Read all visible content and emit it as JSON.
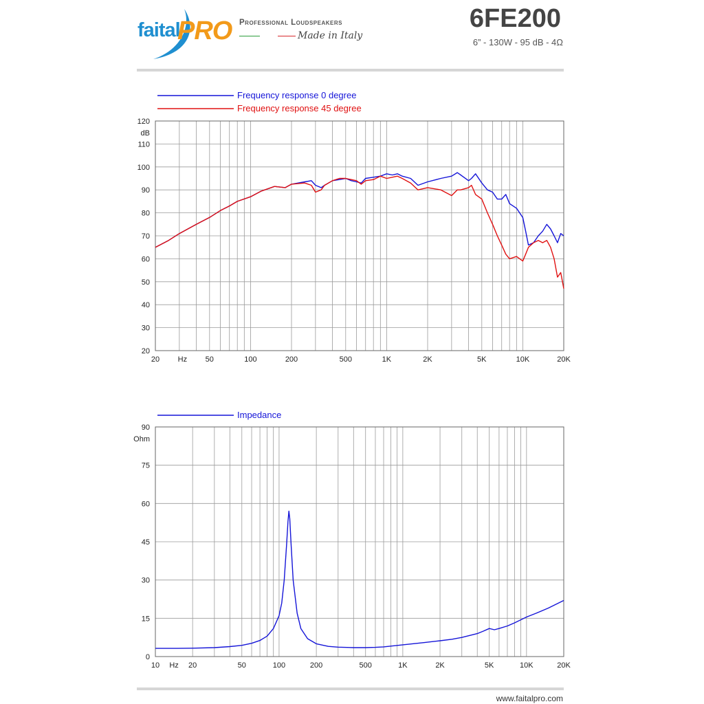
{
  "header": {
    "brand_left": "faital",
    "brand_right": "PRO",
    "tagline": "Professional Loudspeakers",
    "made_in": "Made in Italy",
    "model": "6FE200",
    "specs": "6” - 130W - 95 dB - 4Ω"
  },
  "footer": {
    "url": "www.faitalpro.com"
  },
  "colors": {
    "blue": "#1414d8",
    "red": "#e01010",
    "grid": "#9a9a9a"
  },
  "chart_data": [
    {
      "type": "line",
      "xscale": "log",
      "xlim": [
        20,
        20000
      ],
      "ylim": [
        20,
        120
      ],
      "ylabel": "dB",
      "xlabel": "Hz",
      "x_ticks": [
        20,
        50,
        100,
        200,
        500,
        1000,
        2000,
        5000,
        10000,
        20000
      ],
      "x_tick_labels": [
        "20",
        "50",
        "100",
        "200",
        "500",
        "1K",
        "2K",
        "5K",
        "10K",
        "20K"
      ],
      "y_ticks": [
        20,
        30,
        40,
        50,
        60,
        70,
        80,
        90,
        100,
        110,
        120
      ],
      "grid": true,
      "legend": "top-left",
      "series": [
        {
          "name": "Frequency response 0 degree",
          "color": "#1414d8",
          "x": [
            20,
            25,
            30,
            40,
            50,
            60,
            70,
            80,
            100,
            120,
            150,
            180,
            200,
            250,
            280,
            300,
            330,
            350,
            400,
            450,
            500,
            550,
            600,
            650,
            700,
            800,
            900,
            1000,
            1100,
            1200,
            1300,
            1500,
            1700,
            2000,
            2500,
            3000,
            3300,
            3500,
            4000,
            4200,
            4500,
            5000,
            5500,
            6000,
            6500,
            7000,
            7500,
            8000,
            9000,
            10000,
            10500,
            11000,
            12000,
            13000,
            14000,
            15000,
            16000,
            17000,
            18000,
            19000,
            20000
          ],
          "values": [
            65,
            68,
            71,
            75,
            78,
            81,
            83,
            85,
            87,
            89.5,
            91.5,
            91,
            92.5,
            93.5,
            94,
            92,
            91,
            92,
            94,
            94.5,
            95,
            94,
            93.5,
            93,
            95,
            95.5,
            96,
            97,
            96.5,
            97,
            96,
            95,
            92,
            93.5,
            95,
            96,
            97.5,
            96.5,
            94,
            95,
            97,
            93,
            90,
            89,
            86,
            86,
            88,
            84,
            82,
            78,
            72,
            66,
            67,
            70,
            72,
            75,
            73,
            70,
            67,
            71,
            70
          ]
        },
        {
          "name": "Frequency response 45 degree",
          "color": "#e01010",
          "x": [
            20,
            25,
            30,
            40,
            50,
            60,
            70,
            80,
            100,
            120,
            150,
            180,
            200,
            250,
            280,
            300,
            330,
            350,
            400,
            450,
            500,
            550,
            600,
            650,
            700,
            800,
            900,
            1000,
            1100,
            1200,
            1300,
            1500,
            1700,
            2000,
            2500,
            3000,
            3300,
            3500,
            4000,
            4200,
            4500,
            5000,
            5500,
            6000,
            6500,
            7000,
            7500,
            8000,
            9000,
            10000,
            10500,
            11000,
            12000,
            13000,
            14000,
            15000,
            16000,
            17000,
            18000,
            19000,
            20000
          ],
          "values": [
            65,
            68,
            71,
            75,
            78,
            81,
            83,
            85,
            87,
            89.5,
            91.5,
            91,
            92.5,
            93,
            92,
            89,
            90,
            92,
            94,
            95,
            95,
            94.5,
            94,
            92.5,
            94,
            94.5,
            96,
            95,
            95.5,
            96,
            95,
            93,
            90,
            91,
            90,
            87.5,
            90,
            90,
            91,
            92,
            88,
            86,
            80,
            75,
            70,
            66,
            62,
            60,
            61,
            59,
            62,
            65,
            67,
            68,
            67,
            68,
            65,
            60,
            52,
            54,
            47
          ]
        }
      ]
    },
    {
      "type": "line",
      "xscale": "log",
      "xlim": [
        10,
        20000
      ],
      "ylim": [
        0,
        90
      ],
      "ylabel": "Ohm",
      "xlabel": "Hz",
      "x_ticks": [
        10,
        20,
        50,
        100,
        200,
        500,
        1000,
        2000,
        5000,
        10000,
        20000
      ],
      "x_tick_labels": [
        "10",
        "20",
        "50",
        "100",
        "200",
        "500",
        "1K",
        "2K",
        "5K",
        "10K",
        "20K"
      ],
      "y_ticks": [
        0,
        15,
        30,
        45,
        60,
        75,
        90
      ],
      "grid": true,
      "legend": "top-left",
      "series": [
        {
          "name": "Impedance",
          "color": "#1414d8",
          "x": [
            10,
            15,
            20,
            30,
            40,
            50,
            60,
            70,
            80,
            90,
            100,
            105,
            110,
            115,
            118,
            120,
            122,
            125,
            130,
            140,
            150,
            170,
            200,
            250,
            300,
            400,
            500,
            600,
            700,
            800,
            1000,
            1200,
            1500,
            2000,
            2500,
            3000,
            4000,
            4500,
            5000,
            5500,
            6000,
            7000,
            8000,
            10000,
            12000,
            15000,
            20000
          ],
          "values": [
            3.2,
            3.2,
            3.3,
            3.5,
            3.9,
            4.4,
            5.2,
            6.3,
            8,
            11,
            16,
            21,
            30,
            44,
            53,
            57,
            54,
            44,
            30,
            17,
            11,
            7,
            5,
            4,
            3.7,
            3.5,
            3.5,
            3.6,
            3.8,
            4.1,
            4.6,
            5,
            5.5,
            6.2,
            6.8,
            7.5,
            9,
            10,
            11,
            10.5,
            11,
            12,
            13.2,
            15.5,
            17,
            19,
            22
          ]
        }
      ]
    }
  ]
}
